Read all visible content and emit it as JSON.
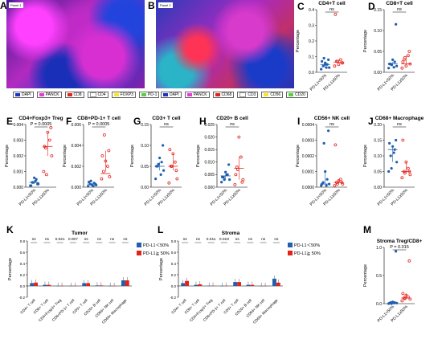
{
  "letters": [
    "A",
    "B",
    "C",
    "D",
    "E",
    "F",
    "G",
    "H",
    "I",
    "J",
    "K",
    "L",
    "M"
  ],
  "images": [
    {
      "tag": "Panel 1",
      "legend": [
        {
          "label": "DAPI",
          "color": "#1a34c8"
        },
        {
          "label": "PANCK",
          "color": "#e23bd8"
        },
        {
          "label": "CD8",
          "color": "#e2231a"
        },
        {
          "label": "CD4",
          "color": "#ffffff"
        },
        {
          "label": "FOXP3",
          "color": "#f6e81f"
        },
        {
          "label": "PD-1",
          "color": "#55d13a"
        }
      ]
    },
    {
      "tag": "Panel 2",
      "legend": [
        {
          "label": "DAPI",
          "color": "#1a34c8"
        },
        {
          "label": "PANCK",
          "color": "#e23bd8"
        },
        {
          "label": "CD68",
          "color": "#e2231a"
        },
        {
          "label": "CD3",
          "color": "#ffffff"
        },
        {
          "label": "CD56",
          "color": "#f6e81f"
        },
        {
          "label": "CD20",
          "color": "#55d13a"
        }
      ]
    }
  ],
  "colors": {
    "blue": "#1f5fae",
    "red": "#e2231a"
  },
  "chart_data": [
    {
      "id": "C",
      "type": "scatter",
      "title": "CD4+T cell",
      "ylabel": "Percentage",
      "ylim": [
        0,
        0.4
      ],
      "yticks": [
        "0.0",
        "0.1",
        "0.2",
        "0.3",
        "0.4"
      ],
      "categories": [
        "PD-L1<50%",
        "PD-L1≥50%"
      ],
      "annotation": "ns",
      "series": [
        {
          "values": [
            0.02,
            0.03,
            0.04,
            0.05,
            0.06,
            0.07,
            0.08,
            0.09,
            0.03,
            0.05
          ]
        },
        {
          "values": [
            0.04,
            0.06,
            0.07,
            0.08,
            0.05,
            0.37,
            0.06,
            0.07
          ]
        }
      ],
      "center": [
        0.05,
        0.065
      ]
    },
    {
      "id": "D",
      "type": "scatter",
      "title": "CD8+T cell",
      "ylabel": "Percentage",
      "ylim": [
        0,
        0.15
      ],
      "yticks": [
        "0.00",
        "0.05",
        "0.10",
        "0.15"
      ],
      "categories": [
        "PD-L1<50%",
        "PD-L1≥50%"
      ],
      "annotation": "ns",
      "series": [
        {
          "values": [
            0.01,
            0.015,
            0.02,
            0.025,
            0.03,
            0.02,
            0.115,
            0.018,
            0.012
          ]
        },
        {
          "values": [
            0.01,
            0.02,
            0.03,
            0.04,
            0.015,
            0.025,
            0.05,
            0.035
          ]
        }
      ],
      "center": [
        0.02,
        0.02
      ]
    },
    {
      "id": "E",
      "type": "scatter",
      "title": "CD4+Foxp3+ Treg",
      "ylabel": "Percentage",
      "ylim": [
        0,
        0.004
      ],
      "yticks": [
        "0.000",
        "0.001",
        "0.002",
        "0.003",
        "0.004"
      ],
      "categories": [
        "PD-L1<50%",
        "PD-L1≥50%"
      ],
      "annotation": "P = 0.0005",
      "series": [
        {
          "values": [
            0.0001,
            0.0002,
            0.0003,
            0.0005,
            0.0006,
            0.0001,
            0.0002,
            0.0003,
            0.0004
          ]
        },
        {
          "values": [
            0.001,
            0.002,
            0.0025,
            0.003,
            0.0035,
            0.0026,
            0.0038,
            0.0008
          ]
        }
      ],
      "center": [
        0.0003,
        0.0026
      ]
    },
    {
      "id": "F",
      "type": "scatter",
      "title": "CD8+PD-1+ T cell",
      "ylabel": "Percentage",
      "ylim": [
        0,
        0.006
      ],
      "yticks": [
        "0.000",
        "0.002",
        "0.004",
        "0.006"
      ],
      "categories": [
        "PD-L1<50%",
        "PD-L1≥50%"
      ],
      "annotation": "P = 0.0005",
      "series": [
        {
          "values": [
            0.0001,
            0.0002,
            0.0003,
            0.0004,
            0.0002,
            0.0005,
            0.0003,
            0.0006,
            0.0001
          ]
        },
        {
          "values": [
            0.0008,
            0.001,
            0.0015,
            0.002,
            0.0025,
            0.003,
            0.0035,
            0.005
          ]
        }
      ],
      "center": [
        0.0003,
        0.0013
      ]
    },
    {
      "id": "G",
      "type": "scatter",
      "title": "CD3+ T cell",
      "ylabel": "Percentage",
      "ylim": [
        0,
        0.15
      ],
      "yticks": [
        "0.00",
        "0.05",
        "0.10",
        "0.15"
      ],
      "categories": [
        "PD-L1<50%",
        "PD-L1≥50%"
      ],
      "annotation": "ns",
      "series": [
        {
          "values": [
            0.02,
            0.04,
            0.05,
            0.06,
            0.07,
            0.05,
            0.1,
            0.055,
            0.03
          ]
        },
        {
          "values": [
            0.01,
            0.02,
            0.05,
            0.06,
            0.08,
            0.09,
            0.04,
            0.05
          ]
        }
      ],
      "center": [
        0.05,
        0.05
      ]
    },
    {
      "id": "H",
      "type": "scatter",
      "title": "CD20+ B cell",
      "ylabel": "Percentage",
      "ylim": [
        0,
        0.025
      ],
      "yticks": [
        "0.000",
        "0.005",
        "0.010",
        "0.015",
        "0.020",
        "0.025"
      ],
      "categories": [
        "PD-L1<50%",
        "PD-L1≥50%"
      ],
      "annotation": "ns",
      "series": [
        {
          "values": [
            0.002,
            0.003,
            0.004,
            0.005,
            0.006,
            0.004,
            0.009,
            0.003,
            0.005
          ]
        },
        {
          "values": [
            0.001,
            0.003,
            0.008,
            0.012,
            0.02,
            0.005,
            0.002,
            0.007
          ]
        }
      ],
      "center": [
        0.0045,
        0.0075
      ]
    },
    {
      "id": "I",
      "type": "scatter",
      "title": "CD56+ NK cell",
      "ylabel": "Percentage",
      "ylim": [
        0,
        0.0004
      ],
      "yticks": [
        "0.0000",
        "0.0001",
        "0.0002",
        "0.0003",
        "0.0004"
      ],
      "categories": [
        "PD-L1<50%",
        "PD-L1≥50%"
      ],
      "annotation": "ns",
      "series": [
        {
          "values": [
            1e-05,
            2e-05,
            3e-05,
            5e-05,
            0.0001,
            2e-05,
            0.00036,
            0.00028,
            1e-05
          ]
        },
        {
          "values": [
            1e-05,
            2e-05,
            3e-05,
            5e-05,
            4e-05,
            0.00027,
            3e-05,
            2e-05
          ]
        }
      ],
      "center": [
        2e-05,
        3e-05
      ]
    },
    {
      "id": "J",
      "type": "scatter",
      "title": "CD68+ Macrophage",
      "ylabel": "Percentage",
      "ylim": [
        0,
        0.2
      ],
      "yticks": [
        "0.00",
        "0.05",
        "0.10",
        "0.15",
        "0.20"
      ],
      "categories": [
        "PD-L1<50%",
        "PD-L1≥50%"
      ],
      "annotation": "ns",
      "series": [
        {
          "values": [
            0.05,
            0.08,
            0.1,
            0.12,
            0.13,
            0.14,
            0.15,
            0.06,
            0.11
          ]
        },
        {
          "values": [
            0.03,
            0.04,
            0.05,
            0.06,
            0.08,
            0.15,
            0.05,
            0.045
          ]
        }
      ],
      "center": [
        0.12,
        0.05
      ]
    },
    {
      "id": "K",
      "type": "bar",
      "title": "Tumor",
      "ylabel": "Percentage",
      "ylim": [
        -0.2,
        0.8
      ],
      "yticks": [
        "-0.2",
        "0.0",
        "0.2",
        "0.4",
        "0.6",
        "0.8"
      ],
      "categories": [
        "CD4+ T cell",
        "CD8+ T cell",
        "CD4+Foxp3+ Treg",
        "CD8+PD-1+ T cell",
        "CD3+ T cell",
        "CD20+ B cell",
        "CD56+ NK cell",
        "CD68+ Macrophage"
      ],
      "annotations": [
        "ns",
        "ns",
        "0.021",
        "0.007",
        "ns",
        "ns",
        "ns",
        "ns"
      ],
      "legend": [
        "PD-L1＜50%",
        "PD-L1≧ 50%"
      ],
      "series": [
        {
          "name": "PD-L1＜50%",
          "values": [
            0.05,
            0.02,
            0.001,
            0.001,
            0.05,
            0.01,
            0.0,
            0.1
          ]
        },
        {
          "name": "PD-L1≧ 50%",
          "values": [
            0.06,
            0.02,
            0.003,
            0.002,
            0.05,
            0.01,
            0.0,
            0.1
          ]
        }
      ]
    },
    {
      "id": "L",
      "type": "bar",
      "title": "Stroma",
      "ylabel": "Percentage",
      "ylim": [
        -0.2,
        0.8
      ],
      "yticks": [
        "-0.2",
        "0.0",
        "0.2",
        "0.4",
        "0.6",
        "0.8"
      ],
      "categories": [
        "CD4+ T cell",
        "CD8+ T cell",
        "CD4+Foxp3+ Treg",
        "CD8+PD-1+ T cell",
        "CD3+ T cell",
        "CD20+ B cell",
        "CD56+ NK cell",
        "CD68+ Macrophage"
      ],
      "annotations": [
        "ns",
        "ns",
        "0.011",
        "0.019",
        "ns",
        "ns",
        "ns",
        "ns"
      ],
      "legend": [
        "PD-L1＜50%",
        "PD-L1≧ 50%"
      ],
      "series": [
        {
          "name": "PD-L1＜50%",
          "values": [
            0.05,
            0.02,
            0.002,
            0.001,
            0.07,
            0.02,
            0.0,
            0.13
          ]
        },
        {
          "name": "PD-L1≧ 50%",
          "values": [
            0.09,
            0.03,
            0.004,
            0.003,
            0.07,
            0.02,
            0.0,
            0.06
          ]
        }
      ]
    },
    {
      "id": "M",
      "type": "scatter",
      "title": "Stroma Treg/CD8+",
      "ylabel": "Percentage",
      "ylim": [
        0,
        1.0
      ],
      "yticks": [
        "0.0",
        "0.5",
        "1.0"
      ],
      "categories": [
        "PD-L1<50%",
        "PD-L1≥50%"
      ],
      "annotation": "P = 0.015",
      "series": [
        {
          "values": [
            0.0,
            0.01,
            0.02,
            0.02,
            0.03,
            0.01,
            0.93,
            0.0,
            0.01
          ]
        },
        {
          "values": [
            0.05,
            0.08,
            0.1,
            0.12,
            0.15,
            0.18,
            0.76,
            0.09
          ]
        }
      ],
      "center": [
        0.01,
        0.1
      ]
    }
  ]
}
